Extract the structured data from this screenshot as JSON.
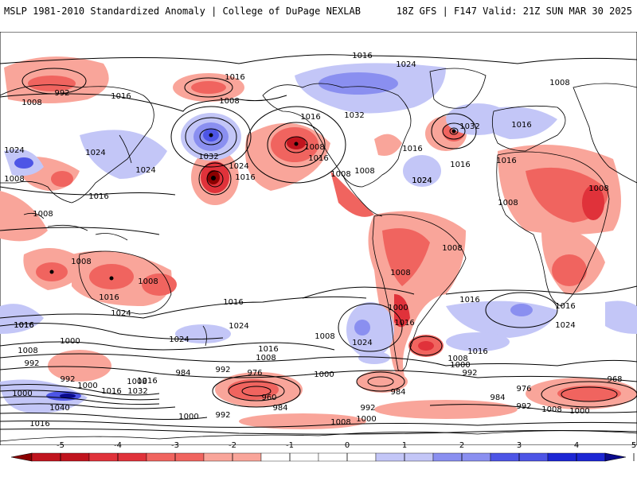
{
  "header": {
    "left": "MSLP 1981-2010 Standardized Anomaly | College of DuPage NEXLAB",
    "right": "18Z GFS | F147 Valid: 21Z SUN MAR 30 2025"
  },
  "colorbar": {
    "ticks": [
      "-5",
      "-4",
      "-3",
      "-2",
      "-1",
      "0",
      "1",
      "2",
      "3",
      "4",
      "5"
    ],
    "colors": [
      "#8b0000",
      "#c0141e",
      "#e0323a",
      "#f0645f",
      "#f9a59a",
      "#ffffff",
      "#ffffff",
      "#c3c6f7",
      "#8a8ff0",
      "#4d55e6",
      "#1c26d4",
      "#0a0a8c"
    ]
  },
  "map": {
    "pressure_labels": [
      "992",
      "1008",
      "1016",
      "1024",
      "1016",
      "1008",
      "1032",
      "1024",
      "1016",
      "1008",
      "1024",
      "1016",
      "1016",
      "1008",
      "1024",
      "1032",
      "1016",
      "1024",
      "1016",
      "1008",
      "1008",
      "1024",
      "1016",
      "1008",
      "1016",
      "1008",
      "1008",
      "1016",
      "1008",
      "1016",
      "1008",
      "1032",
      "1016",
      "1008",
      "1024",
      "1008",
      "1016",
      "1024",
      "1000",
      "1016",
      "1016",
      "1008",
      "1016",
      "1016",
      "1024",
      "1024",
      "1000",
      "1016",
      "1008",
      "1000",
      "992",
      "1008",
      "1024",
      "1008",
      "992",
      "1000",
      "1016",
      "1008",
      "1016",
      "1024",
      "992",
      "1000",
      "1016",
      "1032",
      "1040",
      "984",
      "992",
      "976",
      "960",
      "984",
      "992",
      "1000",
      "1008",
      "1000",
      "984",
      "976",
      "968",
      "984",
      "992",
      "1008",
      "1000",
      "992",
      "1008",
      "1016",
      "1000",
      "1016"
    ],
    "anomaly_colors": {
      "neg_light": "#f9a59a",
      "neg_mid": "#f0645f",
      "neg_strong": "#e0323a",
      "neg_deep": "#c0141e",
      "pos_light": "#c3c6f7",
      "pos_mid": "#8a8ff0",
      "pos_strong": "#4d55e6",
      "pos_deep": "#1c26d4"
    }
  }
}
